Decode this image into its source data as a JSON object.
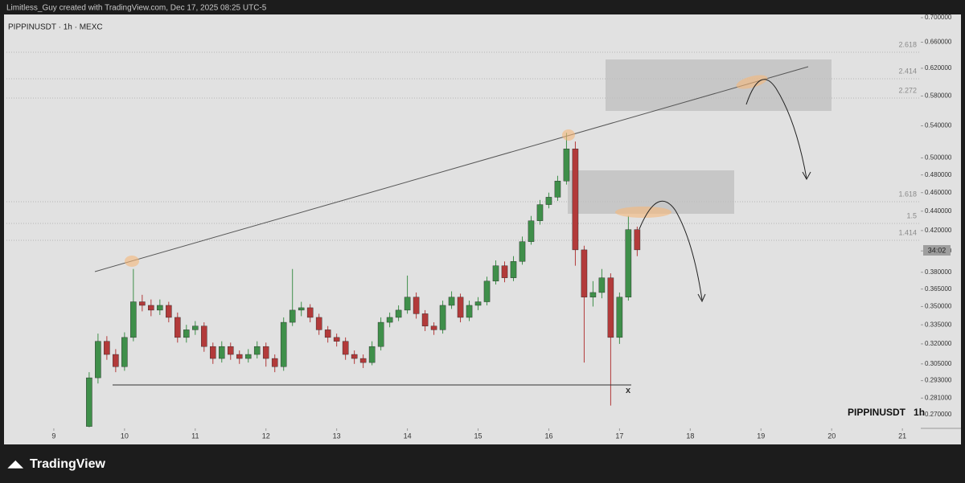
{
  "header": {
    "credit": "Limitless_Guy created with TradingView.com, Dec 17, 2025 08:25 UTC-5",
    "brand": "TradingView"
  },
  "chart_data": {
    "type": "candlestick",
    "title": "PIPPINUSDT · 1h · MEXC",
    "watermark": "PIPPINUSDT   1h",
    "countdown": "34:02",
    "log_scale": true,
    "grid": false,
    "up_color": "#3f8f4a",
    "down_color": "#b23a3a",
    "xlim": [
      8.33,
      21.26
    ],
    "xticks": [
      9,
      10,
      11,
      12,
      13,
      14,
      15,
      16,
      17,
      18,
      19,
      20,
      21
    ],
    "ylim": [
      0.2613,
      0.7054
    ],
    "yticks": [
      {
        "value": 0.7,
        "label": "0.700000"
      },
      {
        "value": 0.66,
        "label": "0.660000"
      },
      {
        "value": 0.62,
        "label": "0.620000"
      },
      {
        "value": 0.58,
        "label": "0.580000"
      },
      {
        "value": 0.54,
        "label": "0.540000"
      },
      {
        "value": 0.5,
        "label": "0.500000"
      },
      {
        "value": 0.48,
        "label": "0.480000"
      },
      {
        "value": 0.46,
        "label": "0.460000"
      },
      {
        "value": 0.44,
        "label": "0.440000"
      },
      {
        "value": 0.42,
        "label": "0.420000"
      },
      {
        "value": 0.4,
        "label": "0.400000"
      },
      {
        "value": 0.38,
        "label": "0.380000"
      },
      {
        "value": 0.365,
        "label": "0.365000"
      },
      {
        "value": 0.35,
        "label": "0.350000"
      },
      {
        "value": 0.335,
        "label": "0.335000"
      },
      {
        "value": 0.32,
        "label": "0.320000"
      },
      {
        "value": 0.305,
        "label": "0.305000"
      },
      {
        "value": 0.293,
        "label": "0.293000"
      },
      {
        "value": 0.281,
        "label": "0.281000"
      },
      {
        "value": 0.27,
        "label": "0.270000"
      }
    ],
    "fib_labels": [
      "2.618",
      "2.414",
      "2.272",
      "1.618",
      "1.5",
      "1.414"
    ],
    "annotation": "x",
    "x": [
      9.5,
      9.625,
      9.75,
      9.875,
      10,
      10.125,
      10.25,
      10.375,
      10.5,
      10.625,
      10.75,
      10.875,
      11,
      11.125,
      11.25,
      11.375,
      11.5,
      11.625,
      11.75,
      11.875,
      12,
      12.125,
      12.25,
      12.375,
      12.5,
      12.625,
      12.75,
      12.875,
      13,
      13.125,
      13.25,
      13.375,
      13.5,
      13.625,
      13.75,
      13.875,
      14,
      14.125,
      14.25,
      14.375,
      14.5,
      14.625,
      14.75,
      14.875,
      15,
      15.125,
      15.25,
      15.375,
      15.5,
      15.625,
      15.75,
      15.875,
      16,
      16.125,
      16.25,
      16.375,
      16.5,
      16.625,
      16.75,
      16.875,
      17,
      17.125,
      17.25
    ],
    "open": [
      0.2625,
      0.295,
      0.322,
      0.312,
      0.303,
      0.325,
      0.354,
      0.351,
      0.347,
      0.351,
      0.341,
      0.325,
      0.331,
      0.334,
      0.318,
      0.309,
      0.318,
      0.312,
      0.309,
      0.312,
      0.318,
      0.309,
      0.303,
      0.337,
      0.347,
      0.349,
      0.341,
      0.331,
      0.325,
      0.322,
      0.312,
      0.309,
      0.306,
      0.318,
      0.337,
      0.341,
      0.347,
      0.358,
      0.344,
      0.334,
      0.331,
      0.351,
      0.358,
      0.341,
      0.351,
      0.354,
      0.372,
      0.386,
      0.375,
      0.39,
      0.409,
      0.43,
      0.447,
      0.455,
      0.473,
      0.511,
      0.401,
      0.358,
      0.362,
      0.375,
      0.325,
      0.358,
      0.421
    ],
    "high": [
      0.299,
      0.328,
      0.326,
      0.316,
      0.329,
      0.383,
      0.36,
      0.356,
      0.356,
      0.354,
      0.345,
      0.335,
      0.338,
      0.337,
      0.321,
      0.322,
      0.321,
      0.315,
      0.316,
      0.322,
      0.321,
      0.312,
      0.341,
      0.383,
      0.354,
      0.352,
      0.344,
      0.334,
      0.328,
      0.325,
      0.315,
      0.312,
      0.322,
      0.341,
      0.345,
      0.351,
      0.377,
      0.362,
      0.347,
      0.337,
      0.355,
      0.363,
      0.361,
      0.355,
      0.358,
      0.376,
      0.391,
      0.39,
      0.395,
      0.414,
      0.435,
      0.452,
      0.46,
      0.479,
      0.531,
      0.52,
      0.405,
      0.372,
      0.383,
      0.379,
      0.362,
      0.435,
      0.424
    ],
    "low": [
      0.262,
      0.291,
      0.308,
      0.299,
      0.3,
      0.322,
      0.346,
      0.342,
      0.343,
      0.337,
      0.321,
      0.321,
      0.327,
      0.314,
      0.305,
      0.306,
      0.308,
      0.305,
      0.306,
      0.309,
      0.303,
      0.299,
      0.3,
      0.334,
      0.342,
      0.337,
      0.327,
      0.321,
      0.318,
      0.308,
      0.305,
      0.302,
      0.304,
      0.315,
      0.333,
      0.338,
      0.344,
      0.34,
      0.33,
      0.327,
      0.328,
      0.348,
      0.337,
      0.338,
      0.347,
      0.351,
      0.369,
      0.371,
      0.372,
      0.387,
      0.406,
      0.426,
      0.443,
      0.451,
      0.469,
      0.386,
      0.306,
      0.35,
      0.357,
      0.276,
      0.32,
      0.355,
      0.395
    ],
    "close": [
      0.295,
      0.322,
      0.312,
      0.303,
      0.325,
      0.354,
      0.351,
      0.347,
      0.351,
      0.341,
      0.325,
      0.331,
      0.334,
      0.318,
      0.309,
      0.318,
      0.312,
      0.309,
      0.312,
      0.318,
      0.309,
      0.303,
      0.337,
      0.347,
      0.349,
      0.341,
      0.331,
      0.325,
      0.322,
      0.312,
      0.309,
      0.306,
      0.318,
      0.337,
      0.341,
      0.347,
      0.358,
      0.344,
      0.334,
      0.331,
      0.351,
      0.358,
      0.341,
      0.351,
      0.354,
      0.372,
      0.386,
      0.375,
      0.39,
      0.409,
      0.43,
      0.447,
      0.455,
      0.473,
      0.511,
      0.401,
      0.358,
      0.362,
      0.375,
      0.325,
      0.358,
      0.421,
      0.401
    ]
  }
}
